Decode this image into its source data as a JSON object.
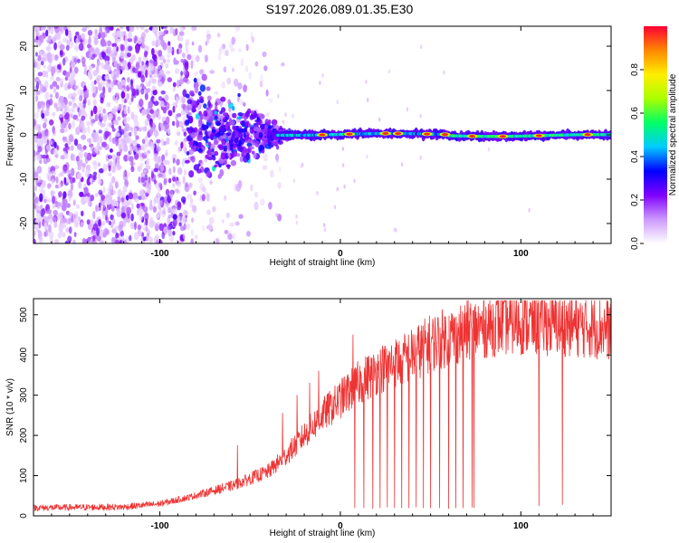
{
  "title": "S197.2026.089.01.35.E30",
  "chart_data": [
    {
      "type": "heatmap",
      "name": "spectrogram",
      "xlabel": "Height of straight line (km)",
      "ylabel": "Frequency (Hz)",
      "xlim": [
        -170,
        150
      ],
      "ylim": [
        -24.5,
        24.5
      ],
      "xticks": [
        -100,
        0,
        100
      ],
      "xtick_labels": [
        "-100",
        "0",
        "100"
      ],
      "yticks": [
        -20,
        -10,
        0,
        10,
        20
      ],
      "ytick_labels": [
        "-20",
        "-10",
        "0",
        "10",
        "20"
      ],
      "colorbar": {
        "label": "Normalized spectral amplitude",
        "range": [
          0,
          1
        ],
        "ticks": [
          0.0,
          0.2,
          0.4,
          0.6,
          0.8
        ],
        "tick_labels": [
          "0.0",
          "0.2",
          "0.4",
          "0.6",
          "0.8"
        ],
        "stops": [
          "#ffffff",
          "#cc99ff",
          "#8000ff",
          "#0000ff",
          "#00ccff",
          "#00ff66",
          "#aaff00",
          "#ffee00",
          "#ff8800",
          "#ff0033"
        ]
      },
      "description_values": {
        "noise_extent_km": [
          -170,
          -85
        ],
        "transition_km": [
          -85,
          -35
        ],
        "carrier_band_hz": [
          -1.5,
          1.5
        ],
        "peak_positions_km": [
          -10,
          5,
          25,
          32,
          48,
          58,
          73,
          90,
          110,
          137
        ]
      }
    },
    {
      "type": "line",
      "name": "snr",
      "xlabel": "Height of straight line (km)",
      "ylabel": "SNR (10 * v/v)",
      "xlim": [
        -170,
        150
      ],
      "ylim": [
        0,
        540
      ],
      "xticks": [
        -100,
        0,
        100
      ],
      "xtick_labels": [
        "-100",
        "0",
        "100"
      ],
      "yticks": [
        0,
        100,
        200,
        300,
        400,
        500
      ],
      "ytick_labels": [
        "0",
        "100",
        "200",
        "300",
        "400",
        "500"
      ],
      "series": [
        {
          "name": "SNR",
          "color": "#ee3333",
          "trend_x": [
            -170,
            -120,
            -100,
            -85,
            -60,
            -40,
            -30,
            -20,
            -10,
            0,
            10,
            20,
            30,
            40,
            50,
            60,
            70,
            80,
            90,
            100,
            120,
            150
          ],
          "trend_y": [
            20,
            22,
            30,
            45,
            75,
            110,
            150,
            200,
            250,
            290,
            330,
            360,
            380,
            400,
            430,
            445,
            460,
            470,
            480,
            480,
            478,
            465
          ],
          "dropouts_x": [
            8,
            13,
            18,
            22,
            26,
            30,
            34,
            38,
            42,
            46,
            50,
            55,
            60,
            64,
            68,
            73,
            74,
            110,
            123
          ],
          "dropouts_y": [
            20,
            20,
            18,
            20,
            22,
            20,
            20,
            20,
            22,
            20,
            20,
            20,
            18,
            20,
            20,
            22,
            20,
            25,
            28
          ],
          "spikes_x": [
            -57,
            -32,
            -24,
            -17,
            -12,
            7
          ],
          "spikes_y": [
            175,
            255,
            300,
            330,
            360,
            450
          ]
        }
      ]
    }
  ]
}
